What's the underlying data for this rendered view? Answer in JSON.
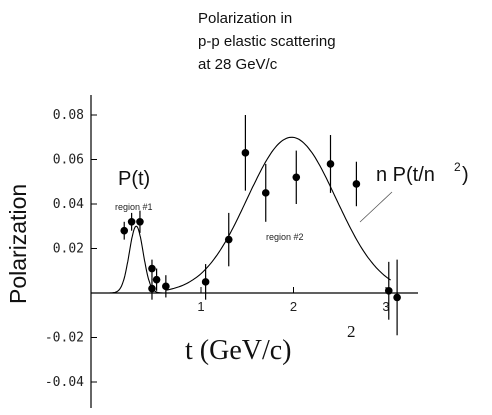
{
  "chart_data": {
    "type": "scatter",
    "title_lines": [
      "Polarization in",
      "p-p elastic scattering",
      "at 28 GeV/c"
    ],
    "ylabel": "Polarization",
    "xlabel": "t (GeV/c)",
    "xlabel_sup": "2",
    "xlim": [
      -0.5,
      3.18
    ],
    "ylim": [
      -0.05,
      0.082
    ],
    "x_ticks": [
      1,
      2,
      3
    ],
    "x_tick_labels": [
      "1",
      "2",
      "3"
    ],
    "y_ticks": [
      0.08,
      0.06,
      0.04,
      0.02,
      -0.02,
      -0.04
    ],
    "y_tick_labels": [
      "0.08",
      "0.06",
      "0.04",
      "0.02",
      "-0.02",
      "-0.04"
    ],
    "points": [
      {
        "x": 0.17,
        "y": 0.028,
        "err": 0.004
      },
      {
        "x": 0.25,
        "y": 0.032,
        "err": 0.004
      },
      {
        "x": 0.34,
        "y": 0.032,
        "err": 0.005
      },
      {
        "x": 0.47,
        "y": 0.011,
        "err": 0.004
      },
      {
        "x": 0.47,
        "y": 0.002,
        "err": 0.005
      },
      {
        "x": 0.52,
        "y": 0.006,
        "err": 0.005
      },
      {
        "x": 0.62,
        "y": 0.003,
        "err": 0.005
      },
      {
        "x": 1.05,
        "y": 0.005,
        "err": 0.008
      },
      {
        "x": 1.3,
        "y": 0.024,
        "err": 0.012
      },
      {
        "x": 1.48,
        "y": 0.063,
        "err": 0.017
      },
      {
        "x": 1.7,
        "y": 0.045,
        "err": 0.013
      },
      {
        "x": 2.03,
        "y": 0.052,
        "err": 0.012
      },
      {
        "x": 2.4,
        "y": 0.058,
        "err": 0.013
      },
      {
        "x": 2.68,
        "y": 0.049,
        "err": 0.01
      },
      {
        "x": 3.03,
        "y": 0.001,
        "err": 0.013
      },
      {
        "x": 3.12,
        "y": -0.002,
        "err": 0.017
      }
    ],
    "curves": [
      {
        "kind": "gaussian",
        "amplitude": 0.03,
        "center": 0.3,
        "sigma": 0.075,
        "x_range": [
          0.0,
          0.62
        ]
      },
      {
        "kind": "gaussian",
        "amplitude": 0.07,
        "center": 1.98,
        "sigma": 0.48,
        "x_range": [
          0.62,
          3.05
        ]
      }
    ],
    "annotations": {
      "p_t": "P(t)",
      "region1": "region #1",
      "region2": "region #2",
      "npt_prefix": "n P(t/n",
      "npt_sup": "2",
      "npt_suffix": ")"
    },
    "grid": false,
    "legend": "none"
  }
}
